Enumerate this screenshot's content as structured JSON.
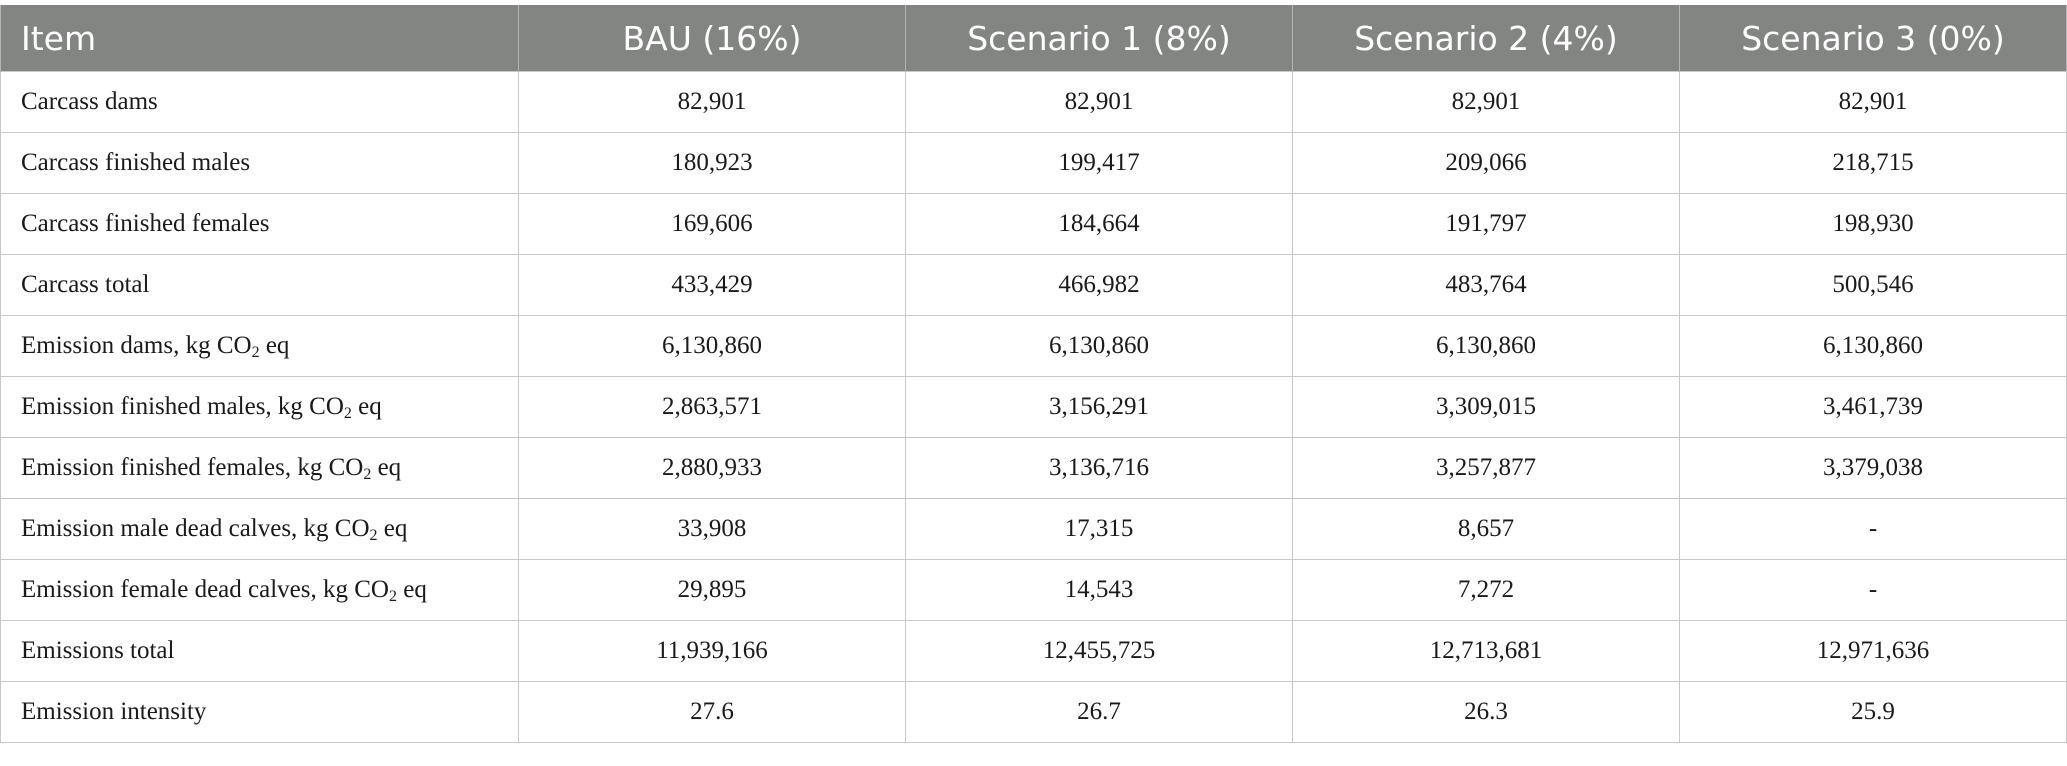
{
  "table": {
    "headers": [
      "Item",
      "BAU (16%)",
      "Scenario 1 (8%)",
      "Scenario 2 (4%)",
      "Scenario 3 (0%)"
    ],
    "rows": [
      {
        "label": "Carcass dams",
        "values": [
          "82,901",
          "82,901",
          "82,901",
          "82,901"
        ]
      },
      {
        "label": "Carcass finished males",
        "values": [
          "180,923",
          "199,417",
          "209,066",
          "218,715"
        ]
      },
      {
        "label": "Carcass finished females",
        "values": [
          "169,606",
          "184,664",
          "191,797",
          "198,930"
        ]
      },
      {
        "label": "Carcass total",
        "values": [
          "433,429",
          "466,982",
          "483,764",
          "500,546"
        ]
      },
      {
        "label": "Emission dams, kg CO",
        "label_sub": "2",
        "label_suffix": " eq",
        "values": [
          "6,130,860",
          "6,130,860",
          "6,130,860",
          "6,130,860"
        ]
      },
      {
        "label": "Emission finished males, kg CO",
        "label_sub": "2",
        "label_suffix": " eq",
        "values": [
          "2,863,571",
          "3,156,291",
          "3,309,015",
          "3,461,739"
        ]
      },
      {
        "label": "Emission finished females, kg CO",
        "label_sub": "2",
        "label_suffix": " eq",
        "values": [
          "2,880,933",
          "3,136,716",
          "3,257,877",
          "3,379,038"
        ]
      },
      {
        "label": "Emission male dead calves, kg CO",
        "label_sub": "2",
        "label_suffix": " eq",
        "values": [
          "33,908",
          "17,315",
          "8,657",
          "-"
        ]
      },
      {
        "label": "Emission female dead calves, kg CO",
        "label_sub": "2",
        "label_suffix": " eq",
        "values": [
          "29,895",
          "14,543",
          "7,272",
          "-"
        ]
      },
      {
        "label": "Emissions total",
        "values": [
          "11,939,166",
          "12,455,725",
          "12,713,681",
          "12,971,636"
        ]
      },
      {
        "label": "Emission intensity",
        "values": [
          "27.6",
          "26.7",
          "26.3",
          "25.9"
        ]
      }
    ]
  }
}
